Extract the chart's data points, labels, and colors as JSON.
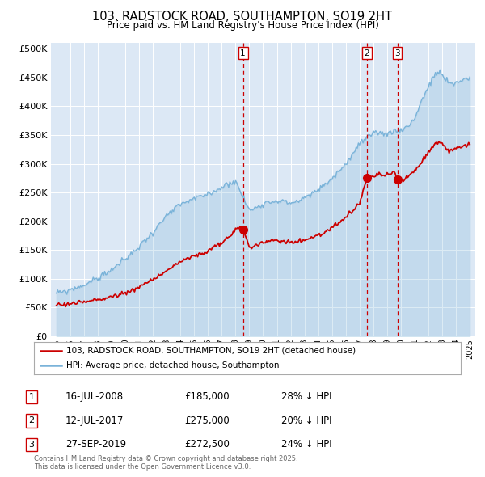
{
  "title": "103, RADSTOCK ROAD, SOUTHAMPTON, SO19 2HT",
  "subtitle": "Price paid vs. HM Land Registry's House Price Index (HPI)",
  "bg_color": "#dce8f5",
  "ylim": [
    0,
    510000
  ],
  "yticks": [
    0,
    50000,
    100000,
    150000,
    200000,
    250000,
    300000,
    350000,
    400000,
    450000,
    500000
  ],
  "hpi_color": "#7ab3d9",
  "price_color": "#cc0000",
  "vline_color": "#cc0000",
  "transactions": [
    {
      "label": "1",
      "date_num": 2008.54,
      "price": 185000
    },
    {
      "label": "2",
      "date_num": 2017.53,
      "price": 275000
    },
    {
      "label": "3",
      "date_num": 2019.74,
      "price": 272500
    }
  ],
  "legend_label_price": "103, RADSTOCK ROAD, SOUTHAMPTON, SO19 2HT (detached house)",
  "legend_label_hpi": "HPI: Average price, detached house, Southampton",
  "table_rows": [
    {
      "num": "1",
      "date": "16-JUL-2008",
      "price": "£185,000",
      "pct": "28% ↓ HPI"
    },
    {
      "num": "2",
      "date": "12-JUL-2017",
      "price": "£275,000",
      "pct": "20% ↓ HPI"
    },
    {
      "num": "3",
      "date": "27-SEP-2019",
      "price": "£272,500",
      "pct": "24% ↓ HPI"
    }
  ],
  "footer_text": "Contains HM Land Registry data © Crown copyright and database right 2025.\nThis data is licensed under the Open Government Licence v3.0.",
  "xmin": 1994.6,
  "xmax": 2025.4
}
